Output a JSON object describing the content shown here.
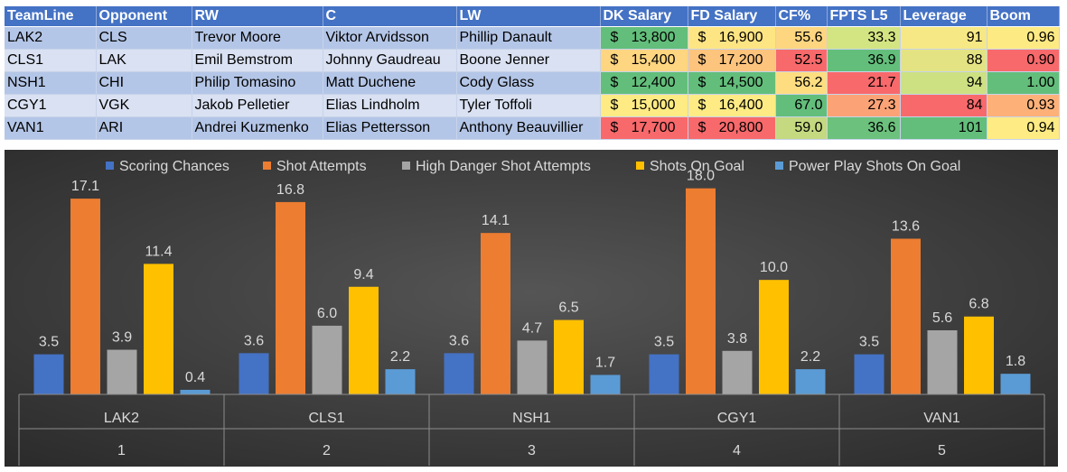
{
  "table": {
    "headers": [
      "TeamLine",
      "Opponent",
      "RW",
      "C",
      "LW",
      "DK Salary",
      "FD Salary",
      "CF%",
      "FPTS L5",
      "Leverage",
      "Boom"
    ],
    "currency": "$",
    "rows": [
      {
        "teamline": "LAK2",
        "opponent": "CLS",
        "rw": "Trevor Moore",
        "c": "Viktor Arvidsson",
        "lw": "Phillip Danault",
        "dk": "13,800",
        "fd": "16,900",
        "cf": "55.6",
        "fpts": "33.3",
        "leverage": "91",
        "boom": "0.96",
        "colors": {
          "dk": "#63be7b",
          "fd": "#fee583",
          "cf": "#fed680",
          "fpts": "#d3e482",
          "leverage": "#f6e884",
          "boom": "#feea83"
        }
      },
      {
        "teamline": "CLS1",
        "opponent": "LAK",
        "rw": "Emil Bemstrom",
        "c": "Johnny Gaudreau",
        "lw": "Boone Jenner",
        "dk": "15,400",
        "fd": "17,200",
        "cf": "52.5",
        "fpts": "36.9",
        "leverage": "88",
        "boom": "0.90",
        "colors": {
          "dk": "#fed580",
          "fd": "#fcc47d",
          "cf": "#f8696b",
          "fpts": "#63be7b",
          "leverage": "#e4e383",
          "boom": "#f8696b"
        }
      },
      {
        "teamline": "NSH1",
        "opponent": "CHI",
        "rw": "Philip Tomasino",
        "c": "Matt Duchene",
        "lw": "Cody Glass",
        "dk": "12,400",
        "fd": "14,500",
        "cf": "56.2",
        "fpts": "21.7",
        "leverage": "94",
        "boom": "1.00",
        "colors": {
          "dk": "#63be7b",
          "fd": "#63be7b",
          "cf": "#fedd81",
          "fpts": "#f8696b",
          "leverage": "#cde182",
          "boom": "#63be7b"
        }
      },
      {
        "teamline": "CGY1",
        "opponent": "VGK",
        "rw": "Jakob Pelletier",
        "c": "Elias Lindholm",
        "lw": "Tyler Toffoli",
        "dk": "15,000",
        "fd": "16,400",
        "cf": "67.0",
        "fpts": "27.3",
        "leverage": "84",
        "boom": "0.93",
        "colors": {
          "dk": "#ffeb84",
          "fd": "#ffeb84",
          "cf": "#63be7b",
          "fpts": "#fba376",
          "leverage": "#f8696b",
          "boom": "#fdb179"
        }
      },
      {
        "teamline": "VAN1",
        "opponent": "ARI",
        "rw": "Andrei Kuzmenko",
        "c": "Elias Pettersson",
        "lw": "Anthony Beauvillier",
        "dk": "17,700",
        "fd": "20,800",
        "cf": "59.0",
        "fpts": "36.6",
        "leverage": "101",
        "boom": "0.94",
        "colors": {
          "dk": "#f8696b",
          "fd": "#f8696b",
          "cf": "#c4d980",
          "fpts": "#6cc17c",
          "leverage": "#63be7b",
          "boom": "#feeb84"
        }
      }
    ]
  },
  "chart_data": {
    "type": "bar",
    "title": "",
    "xlabel": "",
    "ylabel": "",
    "legend_position": "top",
    "grid": false,
    "ylim": [
      0,
      19
    ],
    "categories": [
      {
        "team": "LAK2",
        "index": "1"
      },
      {
        "team": "CLS1",
        "index": "2"
      },
      {
        "team": "NSH1",
        "index": "3"
      },
      {
        "team": "CGY1",
        "index": "4"
      },
      {
        "team": "VAN1",
        "index": "5"
      }
    ],
    "series": [
      {
        "name": "Scoring Chances",
        "color": "#4472c4",
        "values": [
          3.5,
          3.6,
          3.6,
          3.5,
          3.5
        ]
      },
      {
        "name": "Shot Attempts",
        "color": "#ed7d31",
        "values": [
          17.1,
          16.8,
          14.1,
          18.0,
          13.6
        ]
      },
      {
        "name": "High Danger Shot Attempts",
        "color": "#a5a5a5",
        "values": [
          3.9,
          6.0,
          4.7,
          3.8,
          5.6
        ]
      },
      {
        "name": "Shots On Goal",
        "color": "#ffc000",
        "values": [
          11.4,
          9.4,
          6.5,
          10.0,
          6.8
        ]
      },
      {
        "name": "Power Play Shots On Goal",
        "color": "#5b9bd5",
        "values": [
          0.4,
          2.2,
          1.7,
          2.2,
          1.8
        ]
      }
    ]
  }
}
